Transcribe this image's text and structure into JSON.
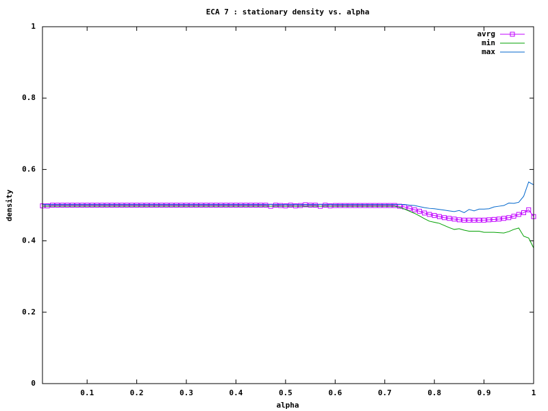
{
  "chart_data": {
    "type": "line",
    "title": "ECA 7 : stationary density vs. alpha",
    "x_label": "alpha",
    "y_label": "density",
    "x": [
      0.01,
      0.02,
      0.03,
      0.04,
      0.05,
      0.06,
      0.07,
      0.08,
      0.09,
      0.1,
      0.11,
      0.12,
      0.13,
      0.14,
      0.15,
      0.16,
      0.17,
      0.18,
      0.19,
      0.2,
      0.21,
      0.22,
      0.23,
      0.24,
      0.25,
      0.26,
      0.27,
      0.28,
      0.29,
      0.3,
      0.31,
      0.32,
      0.33,
      0.34,
      0.35,
      0.36,
      0.37,
      0.38,
      0.39,
      0.4,
      0.41,
      0.42,
      0.43,
      0.44,
      0.45,
      0.46,
      0.47,
      0.48,
      0.49,
      0.5,
      0.51,
      0.52,
      0.53,
      0.54,
      0.55,
      0.56,
      0.57,
      0.58,
      0.59,
      0.6,
      0.61,
      0.62,
      0.63,
      0.64,
      0.65,
      0.66,
      0.67,
      0.68,
      0.69,
      0.7,
      0.71,
      0.72,
      0.73,
      0.74,
      0.75,
      0.76,
      0.77,
      0.78,
      0.79,
      0.8,
      0.81,
      0.82,
      0.83,
      0.84,
      0.85,
      0.86,
      0.87,
      0.88,
      0.89,
      0.9,
      0.91,
      0.92,
      0.93,
      0.94,
      0.95,
      0.96,
      0.97,
      0.98,
      0.99,
      1
    ],
    "series": [
      {
        "name": "avrg",
        "color": "#c000ff",
        "marker": "square",
        "values": [
          0.498,
          0.498,
          0.5,
          0.5,
          0.5,
          0.5,
          0.5,
          0.5,
          0.5,
          0.5,
          0.5,
          0.5,
          0.5,
          0.5,
          0.5,
          0.5,
          0.5,
          0.5,
          0.5,
          0.5,
          0.5,
          0.5,
          0.5,
          0.5,
          0.5,
          0.5,
          0.5,
          0.5,
          0.5,
          0.5,
          0.5,
          0.5,
          0.5,
          0.5,
          0.5,
          0.5,
          0.5,
          0.5,
          0.5,
          0.5,
          0.5,
          0.5,
          0.5,
          0.5,
          0.5,
          0.5,
          0.497,
          0.5,
          0.499,
          0.498,
          0.5,
          0.498,
          0.499,
          0.501,
          0.5,
          0.5,
          0.497,
          0.5,
          0.498,
          0.499,
          0.499,
          0.499,
          0.499,
          0.499,
          0.499,
          0.499,
          0.499,
          0.499,
          0.499,
          0.499,
          0.499,
          0.499,
          0.497,
          0.495,
          0.491,
          0.487,
          0.483,
          0.478,
          0.474,
          0.471,
          0.468,
          0.465,
          0.463,
          0.461,
          0.459,
          0.458,
          0.458,
          0.458,
          0.458,
          0.458,
          0.459,
          0.46,
          0.461,
          0.463,
          0.465,
          0.469,
          0.474,
          0.479,
          0.487,
          0.468
        ]
      },
      {
        "name": "min",
        "color": "#00a000",
        "values": [
          0.497,
          0.497,
          0.497,
          0.497,
          0.497,
          0.497,
          0.497,
          0.497,
          0.497,
          0.497,
          0.497,
          0.497,
          0.497,
          0.497,
          0.497,
          0.497,
          0.497,
          0.497,
          0.497,
          0.497,
          0.497,
          0.497,
          0.497,
          0.497,
          0.497,
          0.497,
          0.497,
          0.497,
          0.497,
          0.497,
          0.497,
          0.497,
          0.497,
          0.497,
          0.497,
          0.497,
          0.497,
          0.497,
          0.497,
          0.497,
          0.497,
          0.497,
          0.497,
          0.497,
          0.497,
          0.497,
          0.497,
          0.497,
          0.497,
          0.497,
          0.497,
          0.497,
          0.497,
          0.497,
          0.497,
          0.497,
          0.497,
          0.497,
          0.497,
          0.497,
          0.497,
          0.497,
          0.497,
          0.497,
          0.497,
          0.497,
          0.497,
          0.497,
          0.497,
          0.497,
          0.497,
          0.497,
          0.494,
          0.489,
          0.483,
          0.477,
          0.47,
          0.462,
          0.455,
          0.452,
          0.449,
          0.443,
          0.437,
          0.432,
          0.434,
          0.43,
          0.427,
          0.427,
          0.427,
          0.424,
          0.424,
          0.424,
          0.423,
          0.422,
          0.426,
          0.432,
          0.436,
          0.413,
          0.408,
          0.38
        ]
      },
      {
        "name": "max",
        "color": "#0066cc",
        "values": [
          0.502,
          0.502,
          0.502,
          0.502,
          0.502,
          0.502,
          0.502,
          0.502,
          0.502,
          0.502,
          0.502,
          0.502,
          0.502,
          0.502,
          0.502,
          0.502,
          0.502,
          0.502,
          0.502,
          0.502,
          0.502,
          0.502,
          0.502,
          0.502,
          0.502,
          0.502,
          0.502,
          0.502,
          0.502,
          0.502,
          0.502,
          0.502,
          0.502,
          0.502,
          0.502,
          0.502,
          0.502,
          0.502,
          0.502,
          0.502,
          0.502,
          0.502,
          0.502,
          0.502,
          0.502,
          0.502,
          0.502,
          0.502,
          0.502,
          0.502,
          0.502,
          0.502,
          0.502,
          0.502,
          0.502,
          0.502,
          0.502,
          0.502,
          0.502,
          0.502,
          0.502,
          0.502,
          0.502,
          0.502,
          0.502,
          0.502,
          0.502,
          0.502,
          0.502,
          0.502,
          0.502,
          0.502,
          0.502,
          0.502,
          0.5,
          0.499,
          0.496,
          0.493,
          0.491,
          0.49,
          0.488,
          0.486,
          0.484,
          0.482,
          0.485,
          0.479,
          0.488,
          0.484,
          0.489,
          0.489,
          0.49,
          0.495,
          0.497,
          0.499,
          0.506,
          0.505,
          0.508,
          0.525,
          0.565,
          0.557
        ]
      }
    ],
    "xlim": [
      0.01,
      1
    ],
    "ylim": [
      0,
      1
    ],
    "xticks": [
      0.1,
      0.2,
      0.3,
      0.4,
      0.5,
      0.6,
      0.7,
      0.8,
      0.9,
      1
    ],
    "yticks": [
      0,
      0.2,
      0.4,
      0.6,
      0.8,
      1
    ],
    "grid": false,
    "legend": "top-right"
  }
}
